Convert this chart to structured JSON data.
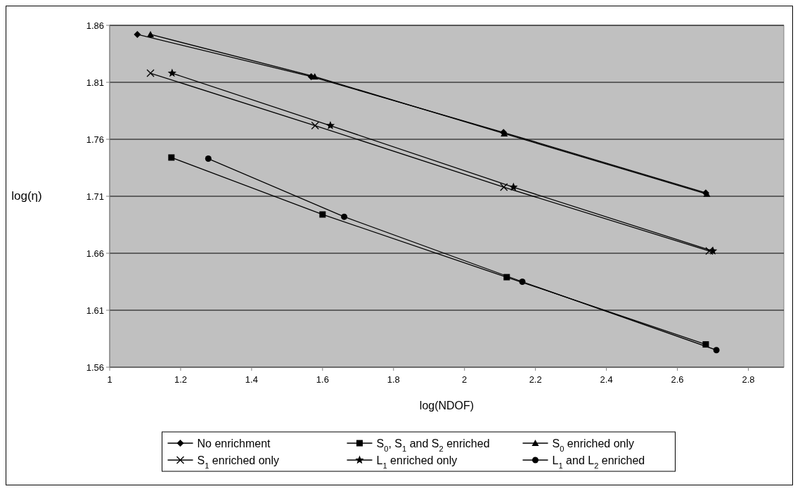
{
  "chart_data": {
    "type": "line",
    "xlabel": "log(NDOF)",
    "ylabel": "log(η)",
    "xlim": [
      1,
      2.9
    ],
    "ylim": [
      1.56,
      1.86
    ],
    "xticks": [
      1,
      1.2,
      1.4,
      1.6,
      1.8,
      2,
      2.2,
      2.4,
      2.6,
      2.8
    ],
    "yticks": [
      1.56,
      1.61,
      1.66,
      1.71,
      1.76,
      1.81,
      1.86
    ],
    "grid": "y",
    "legend": "bottom",
    "series": [
      {
        "name": "No enrichment",
        "color": "#000000",
        "marker": "diamond",
        "x": [
          1.078,
          1.568,
          2.11,
          2.68
        ],
        "values": [
          1.852,
          1.815,
          1.766,
          1.713
        ]
      },
      {
        "name": "S$_{0}$, S$_{1}$ and S$_{2}$ enriched",
        "color": "#000000",
        "marker": "square",
        "x": [
          1.174,
          1.6,
          2.119,
          2.68
        ],
        "values": [
          1.744,
          1.694,
          1.639,
          1.58
        ]
      },
      {
        "name": "S$_{0}$ enriched only",
        "color": "#000000",
        "marker": "triangle",
        "x": [
          1.115,
          1.578,
          2.112,
          2.683
        ],
        "values": [
          1.852,
          1.815,
          1.765,
          1.712
        ]
      },
      {
        "name": "S$_{1}$ enriched only",
        "color": "#000000",
        "marker": "cross",
        "x": [
          1.115,
          1.579,
          2.111,
          2.69
        ],
        "values": [
          1.818,
          1.772,
          1.718,
          1.662
        ]
      },
      {
        "name": "L$_{1}$ enriched only",
        "color": "#000000",
        "marker": "star",
        "x": [
          1.176,
          1.622,
          2.138,
          2.7
        ],
        "values": [
          1.818,
          1.772,
          1.718,
          1.662
        ]
      },
      {
        "name": "L$_{1}$ and L$_{2}$ enriched",
        "color": "#000000",
        "marker": "circle",
        "x": [
          1.278,
          1.661,
          2.163,
          2.71
        ],
        "values": [
          1.743,
          1.692,
          1.635,
          1.575
        ]
      }
    ]
  }
}
